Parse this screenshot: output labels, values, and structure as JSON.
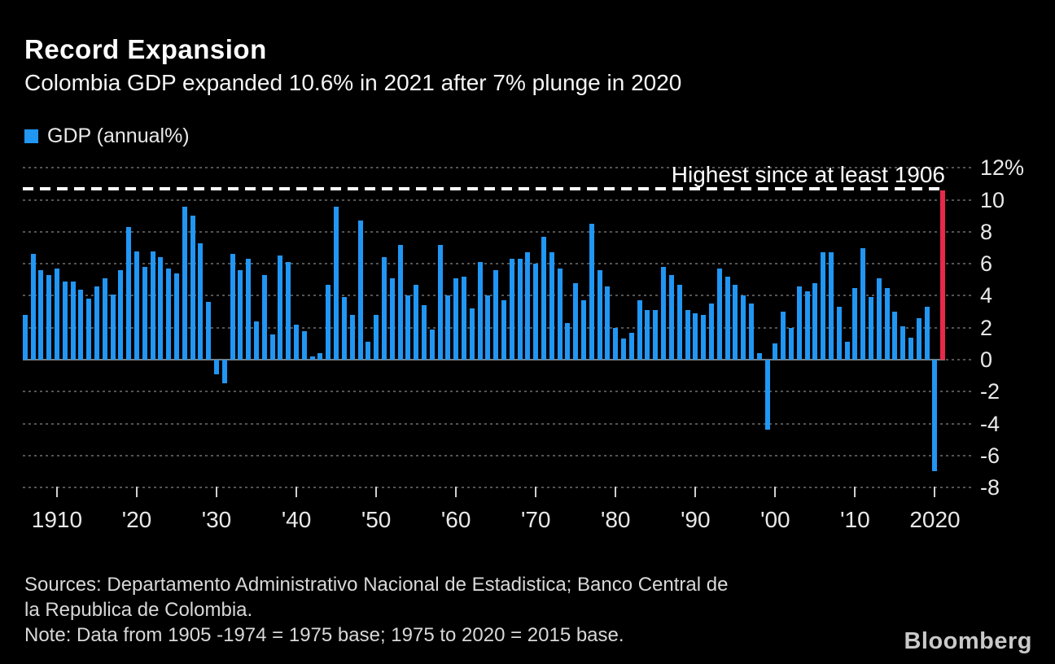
{
  "header": {
    "title": "Record Expansion",
    "subtitle": "Colombia GDP expanded 10.6% in 2021 after 7% plunge in 2020"
  },
  "legend": {
    "label": "GDP (annual%)"
  },
  "annotation": {
    "text": "Highest since at least 1906",
    "line_value": 10.6
  },
  "chart_data": {
    "type": "bar",
    "title": "Record Expansion",
    "subtitle": "Colombia GDP expanded 10.6% in 2021 after 7% plunge in 2020",
    "series_name": "GDP (annual%)",
    "ylim": [
      -8,
      12
    ],
    "grid": true,
    "yticks": [
      12,
      10,
      8,
      6,
      4,
      2,
      0,
      -2,
      -4,
      -6,
      -8
    ],
    "ytick_labels": [
      "12%",
      "10",
      "8",
      "6",
      "4",
      "2",
      "0",
      "-2",
      "-4",
      "-6",
      "-8"
    ],
    "xticks": [
      1910,
      1920,
      1930,
      1940,
      1950,
      1960,
      1970,
      1980,
      1990,
      2000,
      2010,
      2020
    ],
    "xtick_labels": [
      "1910",
      "'20",
      "'30",
      "'40",
      "'50",
      "'60",
      "'70",
      "'80",
      "'90",
      "'00",
      "'10",
      "2020"
    ],
    "highlight_year": 2021,
    "callout_value": 10.6,
    "colors": {
      "bar": "#2196f3",
      "highlight_bar": "#e8294a",
      "grid": "#545454",
      "zero_line": "#7d7d7d",
      "callout_line": "#ffffff"
    },
    "years": [
      1906,
      1907,
      1908,
      1909,
      1910,
      1911,
      1912,
      1913,
      1914,
      1915,
      1916,
      1917,
      1918,
      1919,
      1920,
      1921,
      1922,
      1923,
      1924,
      1925,
      1926,
      1927,
      1928,
      1929,
      1930,
      1931,
      1932,
      1933,
      1934,
      1935,
      1936,
      1937,
      1938,
      1939,
      1940,
      1941,
      1942,
      1943,
      1944,
      1945,
      1946,
      1947,
      1948,
      1949,
      1950,
      1951,
      1952,
      1953,
      1954,
      1955,
      1956,
      1957,
      1958,
      1959,
      1960,
      1961,
      1962,
      1963,
      1964,
      1965,
      1966,
      1967,
      1968,
      1969,
      1970,
      1971,
      1972,
      1973,
      1974,
      1975,
      1976,
      1977,
      1978,
      1979,
      1980,
      1981,
      1982,
      1983,
      1984,
      1985,
      1986,
      1987,
      1988,
      1989,
      1990,
      1991,
      1992,
      1993,
      1994,
      1995,
      1996,
      1997,
      1998,
      1999,
      2000,
      2001,
      2002,
      2003,
      2004,
      2005,
      2006,
      2007,
      2008,
      2009,
      2010,
      2011,
      2012,
      2013,
      2014,
      2015,
      2016,
      2017,
      2018,
      2019,
      2020,
      2021
    ],
    "values": [
      2.8,
      6.6,
      5.6,
      5.3,
      5.7,
      4.9,
      4.9,
      4.4,
      3.8,
      4.6,
      5.1,
      4.1,
      5.6,
      8.3,
      6.8,
      5.8,
      6.8,
      6.4,
      5.7,
      5.4,
      9.6,
      9.0,
      7.3,
      3.6,
      -0.9,
      -1.5,
      6.6,
      5.6,
      6.3,
      2.4,
      5.3,
      1.6,
      6.5,
      6.1,
      2.2,
      1.8,
      0.2,
      0.4,
      4.7,
      9.6,
      3.9,
      2.8,
      8.7,
      1.1,
      2.8,
      6.4,
      5.1,
      7.2,
      4.0,
      4.7,
      3.4,
      1.9,
      7.2,
      4.0,
      5.1,
      5.2,
      3.2,
      6.1,
      4.0,
      5.6,
      3.7,
      6.3,
      6.3,
      6.7,
      6.0,
      7.7,
      6.7,
      5.7,
      2.3,
      4.8,
      3.7,
      8.5,
      5.6,
      4.6,
      2.0,
      1.3,
      1.7,
      3.7,
      3.1,
      3.1,
      5.8,
      5.3,
      4.7,
      3.1,
      2.9,
      2.8,
      3.5,
      5.7,
      5.2,
      4.7,
      4.0,
      3.5,
      0.4,
      -4.4,
      1.0,
      3.0,
      2.0,
      4.6,
      4.3,
      4.8,
      6.7,
      6.7,
      3.3,
      1.1,
      4.5,
      7.0,
      3.9,
      5.1,
      4.5,
      3.0,
      2.1,
      1.4,
      2.6,
      3.3,
      -7.0,
      10.6
    ]
  },
  "footer": {
    "lines": [
      "Sources: Departamento Administrativo Nacional de Estadistica; Banco Central de",
      "la Republica de Colombia.",
      "Note: Data from 1905 -1974 = 1975 base; 1975 to 2020 = 2015 base."
    ],
    "brand": "Bloomberg"
  }
}
